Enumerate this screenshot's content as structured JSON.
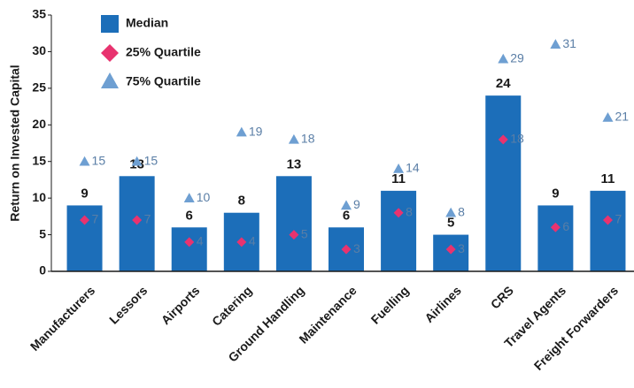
{
  "chart_data": {
    "type": "bar",
    "ylabel": "Return on Invested Capital",
    "categories": [
      "Manufacturers",
      "Lessors",
      "Airports",
      "Catering",
      "Ground Handling",
      "Maintenance",
      "Fuelling",
      "Airlines",
      "CRS",
      "Travel Agents",
      "Freight Forwarders"
    ],
    "series": [
      {
        "name": "Median",
        "marker": "bar",
        "color": "#1c6eb9",
        "values": [
          9,
          13,
          6,
          8,
          13,
          6,
          11,
          5,
          24,
          9,
          11
        ]
      },
      {
        "name": "25% Quartile",
        "marker": "diamond",
        "color": "#e8336f",
        "values": [
          7,
          7,
          4,
          4,
          5,
          3,
          8,
          3,
          18,
          6,
          7
        ]
      },
      {
        "name": "75% Quartile",
        "marker": "triangle",
        "color": "#6e9fd2",
        "values": [
          15,
          15,
          10,
          19,
          18,
          9,
          14,
          8,
          29,
          31,
          21
        ]
      }
    ],
    "ylim": [
      0,
      35
    ],
    "yticks": [
      0,
      5,
      10,
      15,
      20,
      25,
      30,
      35
    ],
    "legend": "upper left"
  }
}
